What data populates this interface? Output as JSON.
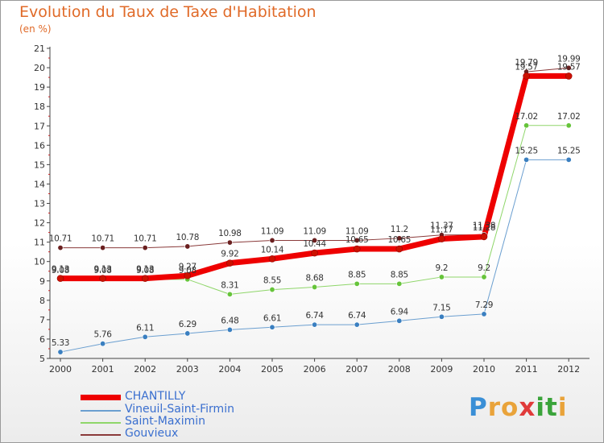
{
  "title": "Evolution du Taux de Taxe d'Habitation",
  "subtitle": "(en %)",
  "logo": {
    "letters": [
      "P",
      "r",
      "o",
      "x",
      "i",
      "t",
      "i"
    ],
    "colors": [
      "#3a8fd6",
      "#e9a33a",
      "#e9a33a",
      "#e03a3a",
      "#3aa33a",
      "#3aa33a",
      "#e9a33a"
    ]
  },
  "chart_data": {
    "type": "line",
    "title": "Evolution du Taux de Taxe d'Habitation",
    "ylabel": "(en %)",
    "xlabel": "",
    "x": [
      "2000",
      "2001",
      "2002",
      "2003",
      "2004",
      "2005",
      "2006",
      "2007",
      "2008",
      "2009",
      "2010",
      "2011",
      "2012"
    ],
    "ylim": [
      5,
      21
    ],
    "yticks": [
      5,
      6,
      7,
      8,
      9,
      10,
      11,
      12,
      13,
      14,
      15,
      16,
      17,
      18,
      19,
      20,
      21
    ],
    "grid": false,
    "legend_position": "bottom-left",
    "series": [
      {
        "name": "CHANTILLY",
        "color": "#ee0000",
        "marker_color": "#cc1100",
        "width": 7,
        "values": [
          9.13,
          9.13,
          9.13,
          9.27,
          9.92,
          10.14,
          10.44,
          10.65,
          10.65,
          11.17,
          11.28,
          19.57,
          19.57
        ],
        "labels": [
          "9.13",
          "9.13",
          "9.13",
          "9.27",
          "9.92",
          "10.14",
          "10.44",
          "10.65",
          "10.65",
          "11.17",
          "11.28",
          "19.57",
          "19.57"
        ]
      },
      {
        "name": "Vineuil-Saint-Firmin",
        "color": "#6b9fd0",
        "marker_color": "#3a7fc0",
        "width": 1,
        "values": [
          5.33,
          5.76,
          6.11,
          6.29,
          6.48,
          6.61,
          6.74,
          6.74,
          6.94,
          7.15,
          7.29,
          15.25,
          15.25
        ],
        "labels": [
          "5.33",
          "5.76",
          "6.11",
          "6.29",
          "6.48",
          "6.61",
          "6.74",
          "6.74",
          "6.94",
          "7.15",
          "7.29",
          "15.25",
          "15.25"
        ]
      },
      {
        "name": "Saint-Maximin",
        "color": "#8fd66a",
        "marker_color": "#66c43a",
        "width": 1,
        "values": [
          9.08,
          9.08,
          9.08,
          9.08,
          8.31,
          8.55,
          8.68,
          8.85,
          8.85,
          9.2,
          9.2,
          17.02,
          17.02
        ],
        "labels": [
          "9.08",
          "9.08",
          "9.08",
          "9.08",
          "8.31",
          "8.55",
          "8.68",
          "8.85",
          "8.85",
          "9.2",
          "9.2",
          "17.02",
          "17.02"
        ]
      },
      {
        "name": "Gouvieux",
        "color": "#8a3a3a",
        "marker_color": "#6a1f1f",
        "width": 1,
        "values": [
          10.71,
          10.71,
          10.71,
          10.78,
          10.98,
          11.09,
          11.09,
          11.09,
          11.2,
          11.37,
          11.38,
          19.79,
          19.99
        ],
        "labels": [
          "10.71",
          "10.71",
          "10.71",
          "10.78",
          "10.98",
          "11.09",
          "11.09",
          "11.09",
          "11.2",
          "11.37",
          "11.38",
          "19.79",
          "19.99"
        ]
      }
    ]
  }
}
